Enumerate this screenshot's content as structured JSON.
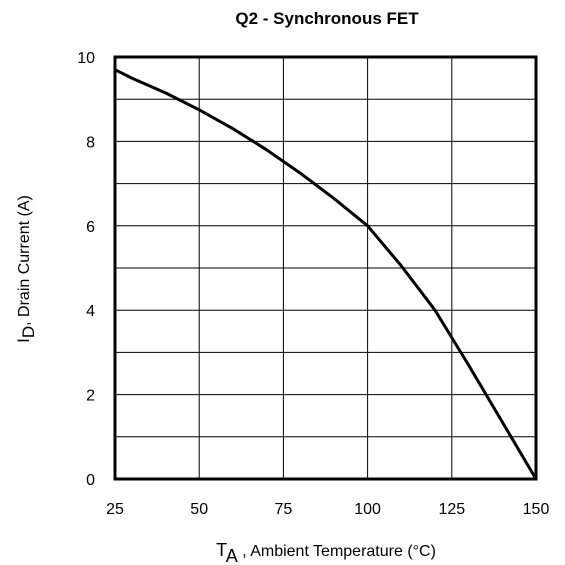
{
  "chart_data": {
    "type": "line",
    "title": "Q2 - Synchronous FET",
    "xlabel": {
      "main": "T",
      "sub": "A",
      "rest": " , Ambient Temperature (°C)"
    },
    "ylabel": {
      "main": "I",
      "sub": "D",
      "rest": ",  Drain Current (A)"
    },
    "xlim": [
      25,
      150
    ],
    "ylim": [
      0,
      10
    ],
    "x_ticks": [
      25,
      50,
      75,
      100,
      125,
      150
    ],
    "y_ticks": [
      0,
      2,
      4,
      6,
      8,
      10
    ],
    "x_tick_labels": [
      "25",
      "50",
      "75",
      "100",
      "125",
      "150"
    ],
    "y_tick_labels": [
      "0",
      "2",
      "4",
      "6",
      "8",
      "10"
    ],
    "grid": true,
    "grid_y_step": 1,
    "series": [
      {
        "x": [
          25,
          30,
          40,
          50,
          60,
          70,
          80,
          90,
          100,
          110,
          120,
          130,
          140,
          150
        ],
        "y": [
          9.7,
          9.5,
          9.15,
          8.75,
          8.3,
          7.8,
          7.25,
          6.65,
          6.0,
          5.05,
          4.0,
          2.7,
          1.35,
          0.0
        ]
      }
    ],
    "colors": {
      "line": "#000000",
      "grid": "#000000"
    }
  }
}
